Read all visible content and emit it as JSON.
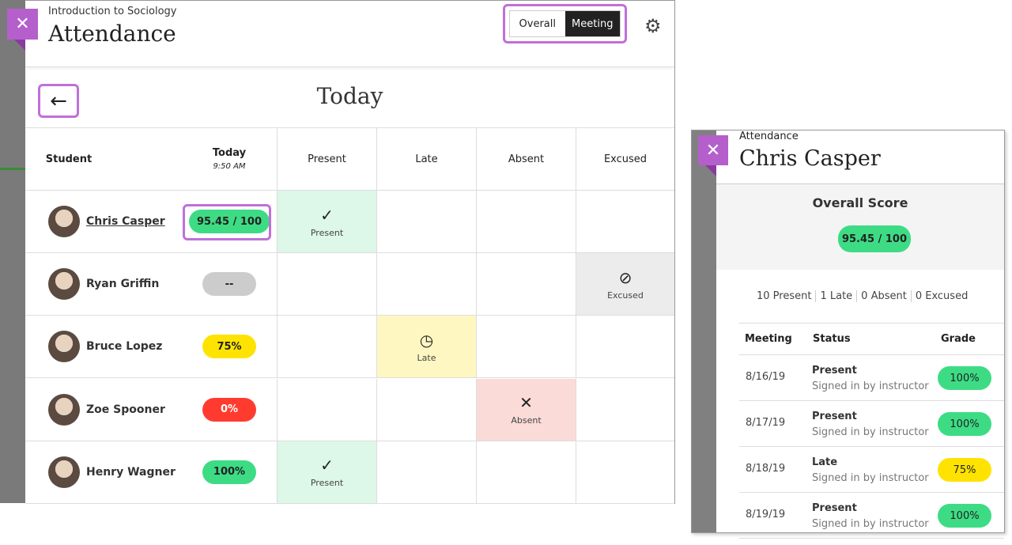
{
  "header": {
    "course": "Introduction to Sociology",
    "title": "Attendance",
    "toggle": [
      "Overall",
      "Meeting"
    ],
    "active_toggle": "Meeting"
  },
  "view": {
    "title": "Today"
  },
  "columns": {
    "student": "Student",
    "today": "Today",
    "time": "9:50 AM",
    "present": "Present",
    "late": "Late",
    "absent": "Absent",
    "excused": "Excused"
  },
  "students": [
    {
      "name": "Chris Casper",
      "score": "95.45 / 100",
      "color": "#3ddc84",
      "status": "Present",
      "icon": "✓"
    },
    {
      "name": "Ryan Griffin",
      "score": "--",
      "color": "#cccccc",
      "status": "Excused",
      "icon": "⊘"
    },
    {
      "name": "Bruce Lopez",
      "score": "75%",
      "color": "#ffe300",
      "status": "Late",
      "icon": "◷"
    },
    {
      "name": "Zoe Spooner",
      "score": "0%",
      "color": "#ff3b30",
      "status": "Absent",
      "icon": "✕"
    },
    {
      "name": "Henry Wagner",
      "score": "100%",
      "color": "#3ddc84",
      "status": "Present",
      "icon": "✓"
    }
  ],
  "panel": {
    "subtitle": "Attendance",
    "name": "Chris Casper",
    "score_label": "Overall Score",
    "score": "95.45 / 100",
    "counts": [
      "10 Present",
      "1 Late",
      "0 Absent",
      "0 Excused"
    ],
    "headers": {
      "meeting": "Meeting",
      "status": "Status",
      "grade": "Grade"
    },
    "rows": [
      {
        "date": "8/16/19",
        "status": "Present",
        "note": "Signed in by instructor",
        "grade": "100%",
        "color": "#3ddc84"
      },
      {
        "date": "8/17/19",
        "status": "Present",
        "note": "Signed in by instructor",
        "grade": "100%",
        "color": "#3ddc84"
      },
      {
        "date": "8/18/19",
        "status": "Late",
        "note": "Signed in by instructor",
        "grade": "75%",
        "color": "#ffe300"
      },
      {
        "date": "8/19/19",
        "status": "Present",
        "note": "Signed in by instructor",
        "grade": "100%",
        "color": "#3ddc84"
      }
    ]
  }
}
